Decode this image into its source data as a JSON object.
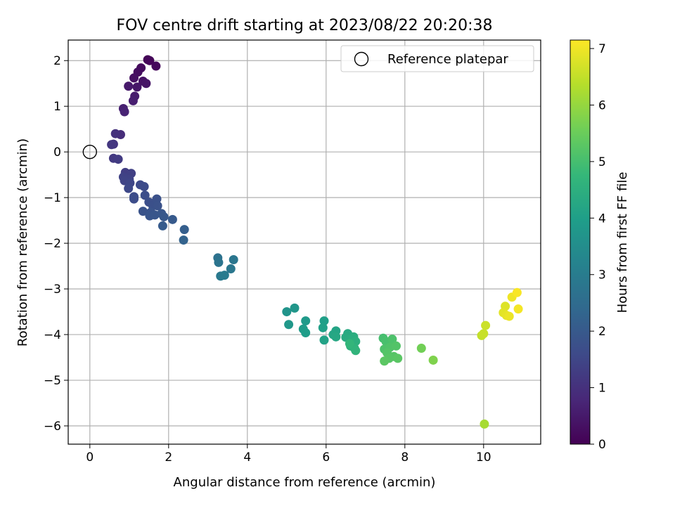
{
  "chart_data": {
    "type": "scatter",
    "title": "FOV centre drift starting at 2023/08/22 20:20:38",
    "xlabel": "Angular distance from reference (arcmin)",
    "ylabel": "Rotation from reference (arcmin)",
    "xlim": [
      -0.55,
      11.45
    ],
    "ylim": [
      -6.4,
      2.45
    ],
    "xticks": [
      0,
      2,
      4,
      6,
      8,
      10
    ],
    "yticks": [
      2,
      1,
      0,
      -1,
      -2,
      -3,
      -4,
      -5,
      -6
    ],
    "grid": true,
    "legend": {
      "position": "top-right",
      "entries": [
        "Reference platepar"
      ]
    },
    "reference_point": {
      "x": 0,
      "y": 0
    },
    "colorbar": {
      "label": "Hours from first FF file",
      "range": [
        0,
        7.15
      ],
      "ticks": [
        0,
        1,
        2,
        3,
        4,
        5,
        6,
        7
      ],
      "colormap": [
        "#440154",
        "#482878",
        "#3e4a89",
        "#31688e",
        "#26828e",
        "#1f9e89",
        "#35b779",
        "#6ece58",
        "#b5de2b",
        "#fde725"
      ]
    },
    "points": [
      {
        "x": 1.47,
        "y": 2.02,
        "h": 0.05
      },
      {
        "x": 1.52,
        "y": 2.0,
        "h": 0.1
      },
      {
        "x": 1.68,
        "y": 1.88,
        "h": 0.15
      },
      {
        "x": 1.3,
        "y": 1.84,
        "h": 0.2
      },
      {
        "x": 1.22,
        "y": 1.75,
        "h": 0.25
      },
      {
        "x": 1.12,
        "y": 1.62,
        "h": 0.3
      },
      {
        "x": 1.35,
        "y": 1.55,
        "h": 0.35
      },
      {
        "x": 1.43,
        "y": 1.5,
        "h": 0.4
      },
      {
        "x": 1.2,
        "y": 1.42,
        "h": 0.45
      },
      {
        "x": 0.98,
        "y": 1.44,
        "h": 0.5
      },
      {
        "x": 1.14,
        "y": 1.22,
        "h": 0.55
      },
      {
        "x": 1.1,
        "y": 1.12,
        "h": 0.6
      },
      {
        "x": 0.85,
        "y": 0.95,
        "h": 0.65
      },
      {
        "x": 0.88,
        "y": 0.88,
        "h": 0.7
      },
      {
        "x": 0.78,
        "y": 0.38,
        "h": 0.9
      },
      {
        "x": 0.65,
        "y": 0.4,
        "h": 1.0
      },
      {
        "x": 0.6,
        "y": 0.17,
        "h": 1.1
      },
      {
        "x": 0.55,
        "y": 0.16,
        "h": 1.15
      },
      {
        "x": 0.6,
        "y": -0.14,
        "h": 1.2
      },
      {
        "x": 0.72,
        "y": -0.16,
        "h": 1.25
      },
      {
        "x": 0.9,
        "y": -0.45,
        "h": 1.3
      },
      {
        "x": 1.05,
        "y": -0.47,
        "h": 1.35
      },
      {
        "x": 0.85,
        "y": -0.55,
        "h": 1.4
      },
      {
        "x": 1.0,
        "y": -0.6,
        "h": 1.42
      },
      {
        "x": 0.88,
        "y": -0.63,
        "h": 1.45
      },
      {
        "x": 1.02,
        "y": -0.68,
        "h": 1.5
      },
      {
        "x": 0.98,
        "y": -0.8,
        "h": 1.55
      },
      {
        "x": 1.28,
        "y": -0.72,
        "h": 1.6
      },
      {
        "x": 1.38,
        "y": -0.76,
        "h": 1.62
      },
      {
        "x": 1.12,
        "y": -0.98,
        "h": 1.65
      },
      {
        "x": 1.12,
        "y": -1.03,
        "h": 1.68
      },
      {
        "x": 1.4,
        "y": -0.95,
        "h": 1.7
      },
      {
        "x": 1.5,
        "y": -1.1,
        "h": 1.72
      },
      {
        "x": 1.6,
        "y": -1.18,
        "h": 1.75
      },
      {
        "x": 1.7,
        "y": -1.03,
        "h": 1.78
      },
      {
        "x": 1.72,
        "y": -1.18,
        "h": 1.8
      },
      {
        "x": 1.35,
        "y": -1.3,
        "h": 1.82
      },
      {
        "x": 1.55,
        "y": -1.32,
        "h": 1.85
      },
      {
        "x": 1.52,
        "y": -1.4,
        "h": 1.88
      },
      {
        "x": 1.65,
        "y": -1.38,
        "h": 1.9
      },
      {
        "x": 1.82,
        "y": -1.35,
        "h": 1.92
      },
      {
        "x": 1.88,
        "y": -1.42,
        "h": 1.95
      },
      {
        "x": 2.1,
        "y": -1.48,
        "h": 2.0
      },
      {
        "x": 1.85,
        "y": -1.62,
        "h": 2.05
      },
      {
        "x": 2.4,
        "y": -1.7,
        "h": 2.15
      },
      {
        "x": 2.38,
        "y": -1.93,
        "h": 2.25
      },
      {
        "x": 3.25,
        "y": -2.32,
        "h": 2.7
      },
      {
        "x": 3.27,
        "y": -2.42,
        "h": 2.75
      },
      {
        "x": 3.65,
        "y": -2.36,
        "h": 2.8
      },
      {
        "x": 3.58,
        "y": -2.56,
        "h": 2.85
      },
      {
        "x": 3.32,
        "y": -2.72,
        "h": 2.9
      },
      {
        "x": 3.42,
        "y": -2.7,
        "h": 2.95
      },
      {
        "x": 5.0,
        "y": -3.5,
        "h": 3.7
      },
      {
        "x": 5.2,
        "y": -3.42,
        "h": 3.75
      },
      {
        "x": 5.05,
        "y": -3.78,
        "h": 3.8
      },
      {
        "x": 5.48,
        "y": -3.7,
        "h": 3.85
      },
      {
        "x": 5.42,
        "y": -3.88,
        "h": 3.9
      },
      {
        "x": 5.48,
        "y": -3.96,
        "h": 3.95
      },
      {
        "x": 5.95,
        "y": -3.7,
        "h": 4.0
      },
      {
        "x": 5.92,
        "y": -3.85,
        "h": 4.05
      },
      {
        "x": 5.95,
        "y": -4.12,
        "h": 4.1
      },
      {
        "x": 6.25,
        "y": -3.92,
        "h": 4.15
      },
      {
        "x": 6.18,
        "y": -4.0,
        "h": 4.2
      },
      {
        "x": 6.25,
        "y": -4.05,
        "h": 4.25
      },
      {
        "x": 6.55,
        "y": -3.98,
        "h": 4.3
      },
      {
        "x": 6.5,
        "y": -4.06,
        "h": 4.35
      },
      {
        "x": 6.6,
        "y": -4.1,
        "h": 4.4
      },
      {
        "x": 6.7,
        "y": -4.05,
        "h": 4.45
      },
      {
        "x": 6.75,
        "y": -4.15,
        "h": 4.5
      },
      {
        "x": 6.62,
        "y": -4.25,
        "h": 4.55
      },
      {
        "x": 6.72,
        "y": -4.3,
        "h": 4.6
      },
      {
        "x": 6.75,
        "y": -4.35,
        "h": 4.65
      },
      {
        "x": 6.6,
        "y": -4.2,
        "h": 4.7
      },
      {
        "x": 7.45,
        "y": -4.08,
        "h": 5.0
      },
      {
        "x": 7.52,
        "y": -4.15,
        "h": 5.05
      },
      {
        "x": 7.68,
        "y": -4.1,
        "h": 5.1
      },
      {
        "x": 7.48,
        "y": -4.32,
        "h": 5.12
      },
      {
        "x": 7.62,
        "y": -4.28,
        "h": 5.15
      },
      {
        "x": 7.78,
        "y": -4.25,
        "h": 5.18
      },
      {
        "x": 7.55,
        "y": -4.4,
        "h": 5.2
      },
      {
        "x": 7.72,
        "y": -4.48,
        "h": 5.22
      },
      {
        "x": 7.6,
        "y": -4.52,
        "h": 5.25
      },
      {
        "x": 7.82,
        "y": -4.52,
        "h": 5.28
      },
      {
        "x": 7.48,
        "y": -4.58,
        "h": 5.3
      },
      {
        "x": 8.42,
        "y": -4.3,
        "h": 5.6
      },
      {
        "x": 8.72,
        "y": -4.56,
        "h": 5.75
      },
      {
        "x": 10.02,
        "y": -5.96,
        "h": 6.2
      },
      {
        "x": 9.95,
        "y": -4.02,
        "h": 6.5
      },
      {
        "x": 10.0,
        "y": -3.98,
        "h": 6.55
      },
      {
        "x": 10.05,
        "y": -3.8,
        "h": 6.6
      },
      {
        "x": 10.55,
        "y": -3.38,
        "h": 6.8
      },
      {
        "x": 10.5,
        "y": -3.52,
        "h": 6.85
      },
      {
        "x": 10.58,
        "y": -3.58,
        "h": 6.9
      },
      {
        "x": 10.65,
        "y": -3.6,
        "h": 6.95
      },
      {
        "x": 10.72,
        "y": -3.18,
        "h": 7.0
      },
      {
        "x": 10.88,
        "y": -3.44,
        "h": 7.05
      },
      {
        "x": 10.85,
        "y": -3.08,
        "h": 7.1
      }
    ]
  }
}
